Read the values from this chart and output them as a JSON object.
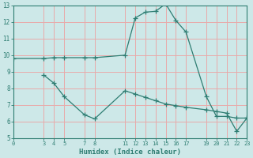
{
  "xlabel": "Humidex (Indice chaleur)",
  "background_color": "#cde8e8",
  "grid_color": "#e8aaaa",
  "line_color": "#2e7d72",
  "xlim": [
    0,
    23
  ],
  "ylim": [
    5,
    13
  ],
  "xticks": [
    0,
    3,
    4,
    5,
    7,
    8,
    11,
    12,
    13,
    14,
    15,
    16,
    17,
    19,
    20,
    21,
    22,
    23
  ],
  "yticks": [
    5,
    6,
    7,
    8,
    9,
    10,
    11,
    12,
    13
  ],
  "line1_x": [
    0,
    3,
    4,
    5,
    7,
    8,
    11,
    12,
    13,
    14,
    15,
    16,
    17,
    19,
    20,
    21,
    22,
    23
  ],
  "line1_y": [
    9.8,
    9.8,
    9.85,
    9.85,
    9.85,
    9.85,
    10.0,
    12.25,
    12.6,
    12.65,
    13.1,
    12.1,
    11.4,
    7.5,
    6.3,
    6.3,
    6.2,
    6.2
  ],
  "line2_x": [
    3,
    4,
    5,
    7,
    8,
    11,
    12,
    13,
    14,
    15,
    16,
    17,
    19,
    20,
    21,
    22,
    23
  ],
  "line2_y": [
    8.8,
    8.3,
    7.5,
    6.4,
    6.15,
    7.85,
    7.65,
    7.45,
    7.25,
    7.05,
    6.95,
    6.85,
    6.7,
    6.6,
    6.5,
    5.4,
    6.2
  ]
}
